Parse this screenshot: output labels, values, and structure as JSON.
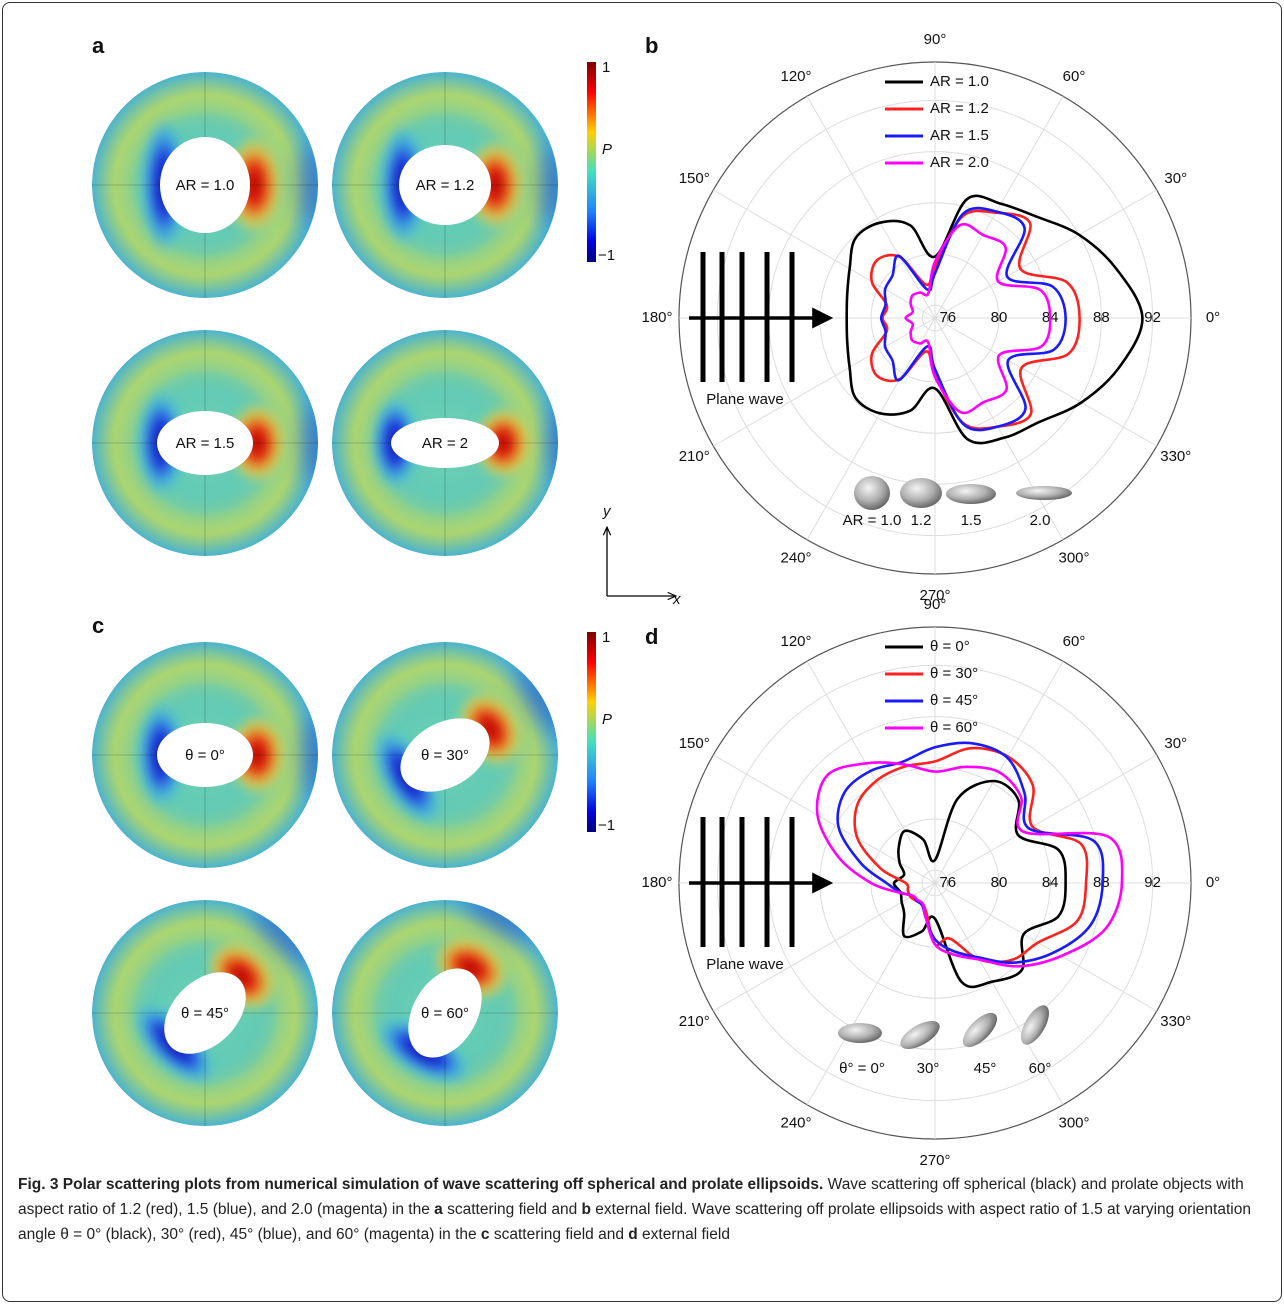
{
  "chart_data": [
    {
      "type": "polar",
      "panel": "b",
      "grid": true,
      "rlim": [
        75,
        95
      ],
      "rticks": [
        76,
        80,
        84,
        88,
        92
      ],
      "thetaticks": [
        {
          "value": 0,
          "label": "0°"
        },
        {
          "value": 30,
          "label": "30°"
        },
        {
          "value": 60,
          "label": "60°"
        },
        {
          "value": 90,
          "label": "90°"
        },
        {
          "value": 120,
          "label": "120°"
        },
        {
          "value": 150,
          "label": "150°"
        },
        {
          "value": 180,
          "label": "180°"
        },
        {
          "value": 210,
          "label": "210°"
        },
        {
          "value": 240,
          "label": "240°"
        },
        {
          "value": 270,
          "label": "270°"
        },
        {
          "value": 300,
          "label": "300°"
        },
        {
          "value": 330,
          "label": "330°"
        }
      ],
      "theta": [
        0,
        15,
        30,
        45,
        60,
        75,
        90,
        105,
        120,
        135,
        150,
        165,
        180,
        195,
        210,
        225,
        240,
        255,
        270,
        285,
        300,
        315,
        330,
        345
      ],
      "series": [
        {
          "name": "AR = 1.0",
          "color": "#000000",
          "values": [
            91.2,
            89.7,
            88,
            86.2,
            85.3,
            84.6,
            79.8,
            82.5,
            83.6,
            83.8,
            82.7,
            82.1,
            81.9,
            82.1,
            82.7,
            83.8,
            83.6,
            82.5,
            80.5,
            84.8,
            85.8,
            86.5,
            88.2,
            89.9
          ]
        },
        {
          "name": "AR = 1.2",
          "color": "#ff2020",
          "values": [
            86.3,
            85.7,
            82.7,
            85.5,
            84.5,
            83.2,
            79,
            77.7,
            80.5,
            81.4,
            80.7,
            78.9,
            79.1,
            78.9,
            80.7,
            81.4,
            80.5,
            77.7,
            79.5,
            83.5,
            84.8,
            85.6,
            82.8,
            85.8
          ]
        },
        {
          "name": "AR = 1.5",
          "color": "#1a1aff",
          "values": [
            85.2,
            84.5,
            81.5,
            84.9,
            84.6,
            83.4,
            78.5,
            77.3,
            80.6,
            79.7,
            79.5,
            79,
            79.2,
            79,
            79.5,
            79.7,
            80.6,
            77.3,
            79,
            83.6,
            84.8,
            85,
            81.6,
            84.6
          ]
        },
        {
          "name": "AR = 2.0",
          "color": "#ff00ff",
          "values": [
            84,
            83.5,
            80.7,
            82.8,
            82.5,
            82.5,
            79.4,
            77,
            77.3,
            77.5,
            77.2,
            76.8,
            77.3,
            76.8,
            77.2,
            77.5,
            77.3,
            77,
            79.6,
            82.6,
            82.6,
            82.9,
            80.8,
            83.6
          ]
        }
      ],
      "plane_wave_label": "Plane wave",
      "shape_labels": [
        "AR = 1.0",
        "1.2",
        "1.5",
        "2.0"
      ]
    },
    {
      "type": "polar",
      "panel": "d",
      "grid": true,
      "rlim": [
        75,
        95
      ],
      "rticks": [
        76,
        80,
        84,
        88,
        92
      ],
      "thetaticks": [
        {
          "value": 0,
          "label": "0°"
        },
        {
          "value": 30,
          "label": "30°"
        },
        {
          "value": 60,
          "label": "60°"
        },
        {
          "value": 90,
          "label": "90°"
        },
        {
          "value": 120,
          "label": "120°"
        },
        {
          "value": 150,
          "label": "150°"
        },
        {
          "value": 180,
          "label": "180°"
        },
        {
          "value": 210,
          "label": "210°"
        },
        {
          "value": 240,
          "label": "240°"
        },
        {
          "value": 270,
          "label": "270°"
        },
        {
          "value": 300,
          "label": "300°"
        },
        {
          "value": 330,
          "label": "330°"
        }
      ],
      "theta": [
        0,
        15,
        30,
        45,
        60,
        75,
        90,
        105,
        120,
        135,
        150,
        165,
        180,
        195,
        210,
        225,
        240,
        255,
        270,
        285,
        300,
        315,
        330,
        345
      ],
      "series": [
        {
          "name": "θ = 0°",
          "color": "#000000",
          "values": [
            85.2,
            85,
            82.5,
            84.2,
            84.2,
            81.8,
            76.8,
            78.5,
            79.7,
            79,
            78.2,
            77.5,
            78.2,
            77.8,
            78,
            78.4,
            79.8,
            78.9,
            77.8,
            83,
            83.9,
            84.6,
            83,
            85
          ]
        },
        {
          "name": "θ = 30°",
          "color": "#ff2020",
          "values": [
            86.8,
            86.8,
            83.8,
            85.8,
            86.4,
            85.9,
            84.5,
            84.4,
            84.2,
            83.6,
            82,
            79.4,
            77.3,
            77.2,
            77.2,
            77,
            76.9,
            77.5,
            79.8,
            79.5,
            81.9,
            83.5,
            84.3,
            86.5
          ]
        },
        {
          "name": "θ = 45°",
          "color": "#1a1aff",
          "values": [
            88.1,
            87.8,
            83.5,
            84.9,
            86.3,
            86.3,
            85.6,
            84.8,
            85.1,
            85,
            83.7,
            81,
            78.8,
            77.8,
            77,
            77,
            77,
            77.8,
            79.4,
            80.5,
            81.7,
            83.8,
            85.8,
            87.6
          ]
        },
        {
          "name": "θ = 60°",
          "color": "#ff00ff",
          "values": [
            89.6,
            89,
            83,
            84.5,
            85,
            84.4,
            83.7,
            84.6,
            85.8,
            86.9,
            85.6,
            82.8,
            80,
            77.9,
            77,
            76.9,
            76.9,
            77.8,
            79.8,
            80.8,
            81.9,
            84.2,
            86.4,
            88.8
          ]
        }
      ],
      "plane_wave_label": "Plane wave",
      "shape_labels": [
        "θ° = 0°",
        "30°",
        "45°",
        "60°"
      ]
    }
  ],
  "heatmaps": [
    {
      "panel": "a",
      "labels": [
        "AR = 1.0",
        "AR = 1.2",
        "AR = 1.5",
        "AR = 2"
      ],
      "colorbar": {
        "top": "1",
        "label": "P",
        "bottom": "−1"
      }
    },
    {
      "panel": "c",
      "labels": [
        "θ = 0°",
        "θ = 30°",
        "θ = 45°",
        "θ = 60°"
      ],
      "colorbar": {
        "top": "1",
        "label": "P",
        "bottom": "−1"
      }
    }
  ],
  "axes_icon": {
    "y": "y",
    "x": "x"
  },
  "caption": {
    "title": "Fig. 3 Polar scattering plots from numerical simulation of wave scattering off spherical and prolate ellipsoids.",
    "body": [
      " Wave scattering off spherical (black) and prolate objects with aspect ratio of 1.2 (red), 1.5 (blue), and 2.0 (magenta) in the ",
      "a",
      " scattering field and ",
      "b",
      " external field. Wave scattering off prolate ellipsoids with aspect ratio of 1.5 at varying orientation angle θ = 0° (black), 30° (red), 45° (blue), and 60° (magenta) in the ",
      "c",
      " scattering field and ",
      "d",
      " external field"
    ]
  }
}
